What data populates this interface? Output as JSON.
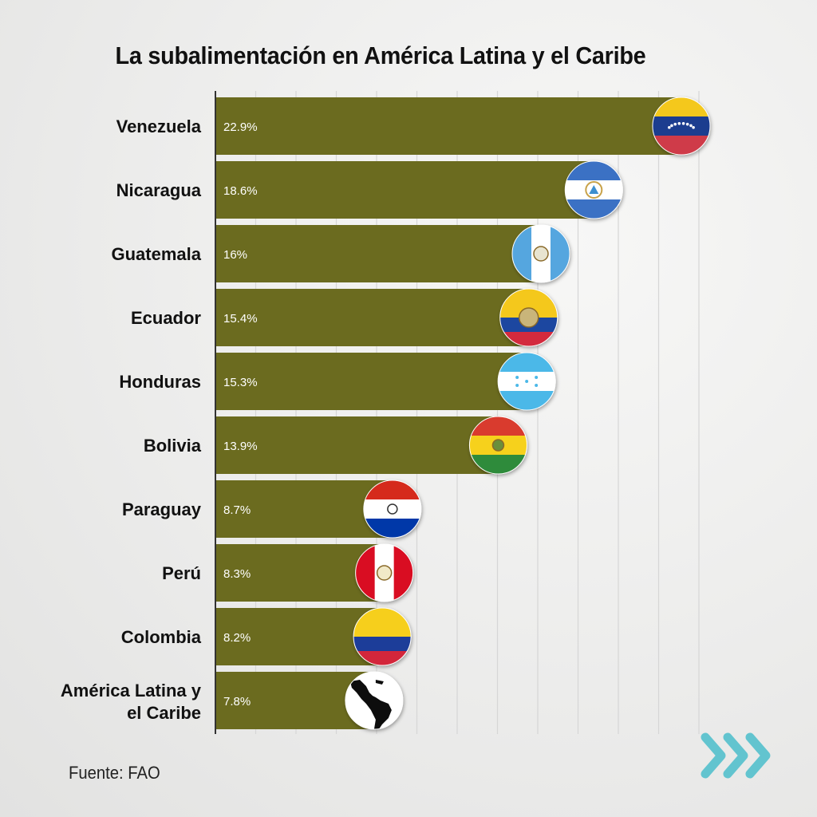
{
  "title": "La subalimentación en América Latina y el Caribe",
  "source": "Fuente: FAO",
  "colors": {
    "bar": "#6b6b1f",
    "axis": "#333333",
    "grid": "#d6d6d6"
  },
  "chart_data": {
    "type": "bar",
    "orientation": "horizontal",
    "title": "La subalimentación en América Latina y el Caribe",
    "xlabel": "",
    "ylabel": "",
    "xlim": [
      0,
      24
    ],
    "grid": true,
    "categories": [
      "Venezuela",
      "Nicaragua",
      "Guatemala",
      "Ecuador",
      "Honduras",
      "Bolivia",
      "Paraguay",
      "Perú",
      "Colombia",
      "América Latina y el Caribe"
    ],
    "values": [
      22.9,
      18.6,
      16,
      15.4,
      15.3,
      13.9,
      8.7,
      8.3,
      8.2,
      7.8
    ],
    "value_labels": [
      "22.9%",
      "18.6%",
      "16%",
      "15.4%",
      "15.3%",
      "13.9%",
      "8.7%",
      "8.3%",
      "8.2%",
      "7.8%"
    ],
    "markers": [
      "venezuela-flag",
      "nicaragua-flag",
      "guatemala-flag",
      "ecuador-flag",
      "honduras-flag",
      "bolivia-flag",
      "paraguay-flag",
      "peru-flag",
      "colombia-flag",
      "latin-america-map"
    ]
  }
}
